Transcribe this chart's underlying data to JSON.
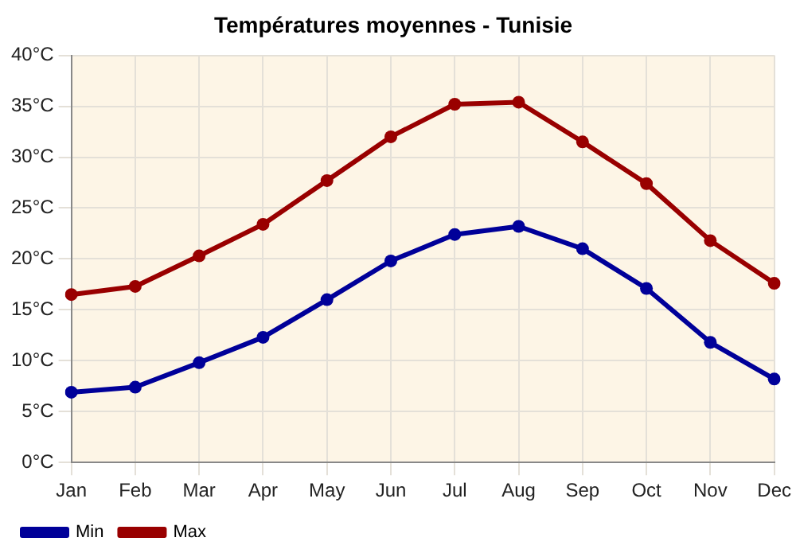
{
  "chart_data": {
    "type": "line",
    "title": "Températures moyennes - Tunisie",
    "categories": [
      "Jan",
      "Feb",
      "Mar",
      "Apr",
      "May",
      "Jun",
      "Jul",
      "Aug",
      "Sep",
      "Oct",
      "Nov",
      "Dec"
    ],
    "series": [
      {
        "name": "Min",
        "color": "#000099",
        "values": [
          6.9,
          7.4,
          9.8,
          12.3,
          16,
          19.8,
          22.4,
          23.2,
          21,
          17.1,
          11.8,
          8.2
        ]
      },
      {
        "name": "Max",
        "color": "#990000",
        "values": [
          16.5,
          17.3,
          20.3,
          23.4,
          27.7,
          32,
          35.2,
          35.4,
          31.5,
          27.4,
          21.8,
          17.6
        ]
      }
    ],
    "ylim": [
      0,
      40
    ],
    "yticks": [
      {
        "value": 0,
        "label": "0°C"
      },
      {
        "value": 5,
        "label": "5°C"
      },
      {
        "value": 10,
        "label": "10°C"
      },
      {
        "value": 15,
        "label": "15°C"
      },
      {
        "value": 20,
        "label": "20°C"
      },
      {
        "value": 25,
        "label": "25°C"
      },
      {
        "value": 30,
        "label": "30°C"
      },
      {
        "value": 35,
        "label": "35°C"
      },
      {
        "value": 40,
        "label": "40°C"
      }
    ],
    "grid": true,
    "legend": "bottom left",
    "marker": "circle",
    "line_style": "solid"
  }
}
